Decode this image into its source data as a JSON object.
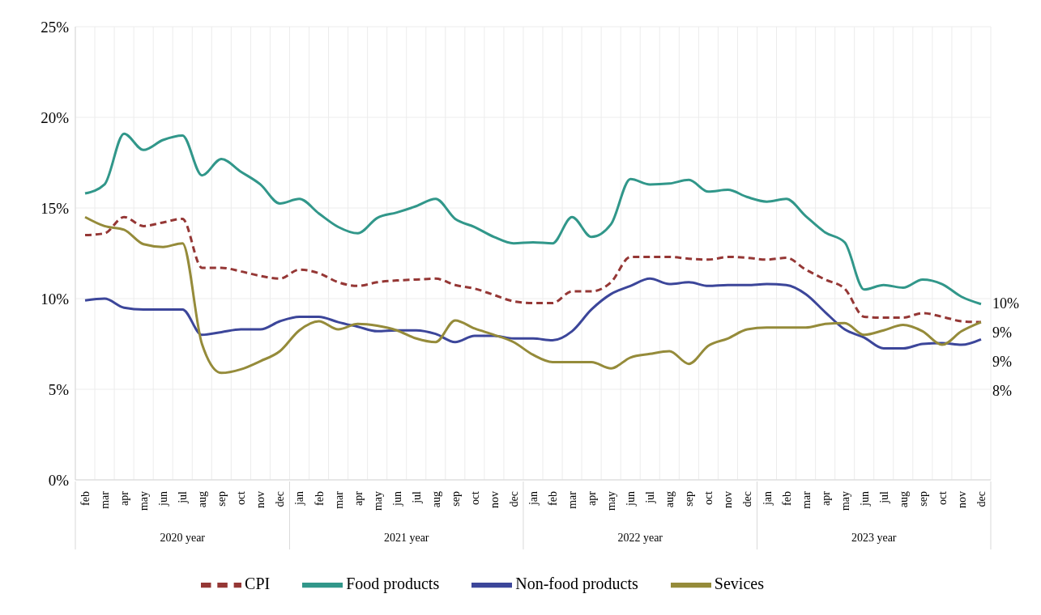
{
  "chart_data": {
    "type": "line",
    "categories": [
      "feb",
      "mar",
      "apr",
      "may",
      "jun",
      "jul",
      "aug",
      "sep",
      "oct",
      "nov",
      "dec",
      "jan",
      "feb",
      "mar",
      "apr",
      "may",
      "jun",
      "jul",
      "aug",
      "sep",
      "oct",
      "nov",
      "dec",
      "jan",
      "feb",
      "mar",
      "apr",
      "may",
      "jun",
      "jul",
      "aug",
      "sep",
      "oct",
      "nov",
      "dec",
      "jan",
      "feb",
      "mar",
      "apr",
      "may",
      "jun",
      "jul",
      "aug",
      "sep",
      "oct",
      "nov",
      "dec"
    ],
    "annotations": [
      "2020 year",
      "2021 year",
      "2022 year",
      "2023 year"
    ],
    "series": [
      {
        "name": "CPI",
        "color": "#953735",
        "line_style": "dashed",
        "values": [
          13.5,
          13.6,
          14.5,
          14.0,
          14.2,
          14.4,
          11.7,
          11.7,
          11.5,
          11.25,
          11.1,
          11.6,
          11.4,
          10.9,
          10.7,
          10.9,
          11.0,
          11.05,
          11.1,
          10.75,
          10.55,
          10.2,
          9.85,
          9.75,
          9.75,
          10.4,
          10.4,
          10.9,
          12.3,
          12.3,
          12.3,
          12.2,
          12.15,
          12.3,
          12.25,
          12.15,
          12.25,
          11.6,
          11.05,
          10.55,
          9.0,
          8.95,
          8.95,
          9.2,
          9.0,
          8.75,
          8.7
        ],
        "value_labels": [
          null,
          null,
          null,
          null,
          null,
          null,
          null,
          null,
          null,
          null,
          null,
          null,
          null,
          null,
          null,
          null,
          null,
          null,
          null,
          null,
          null,
          null,
          null,
          null,
          null,
          null,
          null,
          null,
          null,
          null,
          null,
          null,
          null,
          null,
          null,
          null,
          null,
          null,
          null,
          null,
          null,
          null,
          null,
          null,
          null,
          null,
          "9%"
        ]
      },
      {
        "name": "Food products",
        "color": "#31978a",
        "line_style": "solid",
        "values": [
          15.8,
          16.3,
          19.1,
          18.2,
          18.75,
          19.0,
          16.8,
          17.7,
          17.0,
          16.3,
          15.25,
          15.5,
          14.7,
          13.95,
          13.6,
          14.45,
          14.75,
          15.1,
          15.5,
          14.4,
          13.95,
          13.4,
          13.05,
          13.1,
          13.05,
          14.5,
          13.4,
          14.1,
          16.6,
          16.3,
          16.35,
          16.55,
          15.9,
          16.0,
          15.6,
          15.35,
          15.5,
          14.55,
          13.65,
          13.1,
          10.5,
          10.75,
          10.6,
          11.05,
          10.8,
          10.1,
          9.7
        ],
        "value_labels": [
          null,
          null,
          null,
          null,
          null,
          null,
          null,
          null,
          null,
          null,
          null,
          null,
          null,
          null,
          null,
          null,
          null,
          null,
          null,
          null,
          null,
          null,
          null,
          null,
          null,
          null,
          null,
          null,
          null,
          null,
          null,
          null,
          null,
          null,
          null,
          null,
          null,
          null,
          null,
          null,
          null,
          null,
          null,
          null,
          null,
          null,
          "10%"
        ]
      },
      {
        "name": "Non-food products",
        "color": "#3c469a",
        "line_style": "solid",
        "values": [
          9.9,
          10.0,
          9.5,
          9.4,
          9.4,
          9.4,
          8.0,
          8.15,
          8.3,
          8.3,
          8.75,
          9.0,
          9.0,
          8.7,
          8.45,
          8.2,
          8.25,
          8.25,
          8.05,
          7.6,
          7.95,
          7.95,
          7.8,
          7.8,
          7.7,
          8.2,
          9.4,
          10.25,
          10.7,
          11.1,
          10.8,
          10.9,
          10.7,
          10.75,
          10.75,
          10.8,
          10.75,
          10.25,
          9.25,
          8.3,
          7.85,
          7.25,
          7.25,
          7.5,
          7.55,
          7.45,
          7.75
        ],
        "value_labels": [
          null,
          null,
          null,
          null,
          null,
          null,
          null,
          null,
          null,
          null,
          null,
          null,
          null,
          null,
          null,
          null,
          null,
          null,
          null,
          null,
          null,
          null,
          null,
          null,
          null,
          null,
          null,
          null,
          null,
          null,
          null,
          null,
          null,
          null,
          null,
          null,
          null,
          null,
          null,
          null,
          null,
          null,
          null,
          null,
          null,
          null,
          "8%"
        ]
      },
      {
        "name": "Sevices",
        "color": "#958b3a",
        "line_style": "solid",
        "values": [
          14.5,
          14.0,
          13.8,
          13.0,
          12.85,
          13.05,
          7.5,
          5.9,
          6.1,
          6.55,
          7.1,
          8.25,
          8.75,
          8.3,
          8.6,
          8.5,
          8.25,
          7.8,
          7.6,
          8.8,
          8.35,
          8.0,
          7.6,
          6.9,
          6.5,
          6.5,
          6.5,
          6.15,
          6.75,
          6.95,
          7.1,
          6.4,
          7.4,
          7.8,
          8.3,
          8.4,
          8.4,
          8.4,
          8.6,
          8.65,
          8.0,
          8.25,
          8.55,
          8.2,
          7.45,
          8.2,
          8.7
        ],
        "value_labels": [
          null,
          null,
          null,
          null,
          null,
          null,
          null,
          null,
          null,
          null,
          null,
          null,
          null,
          null,
          null,
          null,
          null,
          null,
          null,
          null,
          null,
          null,
          null,
          null,
          null,
          null,
          null,
          null,
          null,
          null,
          null,
          null,
          null,
          null,
          null,
          null,
          null,
          null,
          null,
          null,
          null,
          null,
          null,
          null,
          null,
          null,
          "9%"
        ]
      }
    ],
    "ylim": [
      0,
      25
    ],
    "yticks": [
      {
        "value": 0,
        "label": "0%"
      },
      {
        "value": 5,
        "label": "5%"
      },
      {
        "value": 10,
        "label": "10%"
      },
      {
        "value": 15,
        "label": "15%"
      },
      {
        "value": 20,
        "label": "20%"
      },
      {
        "value": 25,
        "label": "25%"
      }
    ],
    "grid": true,
    "legend": "bottom",
    "marker": "none"
  }
}
